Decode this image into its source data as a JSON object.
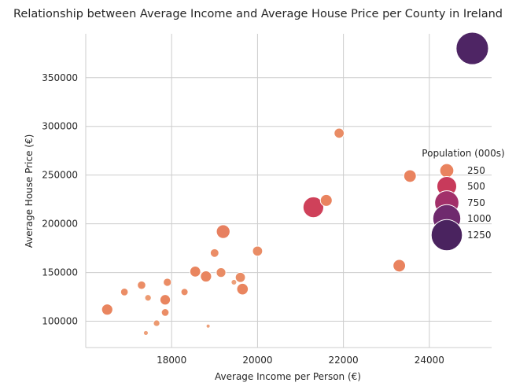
{
  "chart_data": {
    "type": "scatter",
    "title": "Relationship between Average Income and Average House Price per County in Ireland",
    "xlabel": "Average Income per Person (€)",
    "ylabel": "Average House Price (€)",
    "xlim": [
      16000,
      25450
    ],
    "ylim": [
      73000,
      395000
    ],
    "xticks": [
      18000,
      20000,
      22000,
      24000
    ],
    "yticks": [
      100000,
      150000,
      200000,
      250000,
      300000,
      350000
    ],
    "grid": true,
    "legend": {
      "title": "Population (000s)",
      "placement": "right",
      "entries": [
        {
          "label": "250",
          "size": 250,
          "color": "#e9835f"
        },
        {
          "label": "500",
          "size": 500,
          "color": "#c83a5b"
        },
        {
          "label": "750",
          "size": 750,
          "color": "#a2306a"
        },
        {
          "label": "1000",
          "size": 1000,
          "color": "#6f2a6e"
        },
        {
          "label": "1250",
          "size": 1250,
          "color": "#4a235f"
        }
      ]
    },
    "points": [
      {
        "x": 25000,
        "y": 380000,
        "size": 1350,
        "color": "#4e2564"
      },
      {
        "x": 21900,
        "y": 293000,
        "size": 130,
        "color": "#e98c65"
      },
      {
        "x": 23550,
        "y": 249000,
        "size": 200,
        "color": "#e9835f"
      },
      {
        "x": 21300,
        "y": 217000,
        "size": 550,
        "color": "#cf415a"
      },
      {
        "x": 21600,
        "y": 224000,
        "size": 180,
        "color": "#e9835f"
      },
      {
        "x": 19200,
        "y": 192000,
        "size": 240,
        "color": "#e78060"
      },
      {
        "x": 23300,
        "y": 157000,
        "size": 200,
        "color": "#e9835f"
      },
      {
        "x": 19000,
        "y": 170000,
        "size": 95,
        "color": "#eb8d66"
      },
      {
        "x": 20000,
        "y": 172000,
        "size": 130,
        "color": "#e98c65"
      },
      {
        "x": 18550,
        "y": 151000,
        "size": 150,
        "color": "#e9855f"
      },
      {
        "x": 18800,
        "y": 146000,
        "size": 160,
        "color": "#e9855f"
      },
      {
        "x": 19150,
        "y": 150000,
        "size": 120,
        "color": "#e98c65"
      },
      {
        "x": 19600,
        "y": 145000,
        "size": 130,
        "color": "#e98c65"
      },
      {
        "x": 19450,
        "y": 140000,
        "size": 40,
        "color": "#eda07a"
      },
      {
        "x": 19650,
        "y": 133000,
        "size": 170,
        "color": "#e9855f"
      },
      {
        "x": 17900,
        "y": 140000,
        "size": 85,
        "color": "#eb8d66"
      },
      {
        "x": 17300,
        "y": 137000,
        "size": 90,
        "color": "#eb8d66"
      },
      {
        "x": 16900,
        "y": 130000,
        "size": 75,
        "color": "#eb8d66"
      },
      {
        "x": 18300,
        "y": 130000,
        "size": 65,
        "color": "#eb8d66"
      },
      {
        "x": 17450,
        "y": 124000,
        "size": 55,
        "color": "#ec9a71"
      },
      {
        "x": 17850,
        "y": 122000,
        "size": 140,
        "color": "#e9855f"
      },
      {
        "x": 16500,
        "y": 112000,
        "size": 160,
        "color": "#e9855f"
      },
      {
        "x": 17850,
        "y": 109000,
        "size": 75,
        "color": "#eb8d66"
      },
      {
        "x": 17650,
        "y": 98000,
        "size": 55,
        "color": "#ec9a71"
      },
      {
        "x": 18850,
        "y": 95000,
        "size": 20,
        "color": "#eda07a"
      },
      {
        "x": 17400,
        "y": 88000,
        "size": 30,
        "color": "#eda07a"
      }
    ]
  }
}
